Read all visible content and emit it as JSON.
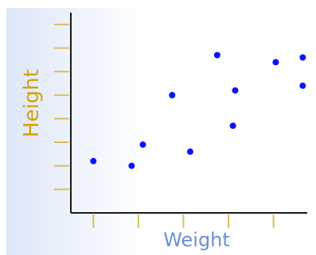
{
  "colors": {
    "background_start": "#dde7f8",
    "background_end": "#ffffff",
    "axis_line": "#1a1a1a",
    "tick": "#d8c060",
    "point": "#0a14ff",
    "ylabel_color": "#d4a20a",
    "xlabel_color": "#6b8fd6"
  },
  "chart_data": {
    "type": "scatter",
    "title": "",
    "xlabel": "Weight",
    "ylabel": "Height",
    "xlim": [
      0,
      10.5
    ],
    "ylim": [
      0,
      8.5
    ],
    "x_ticks": [
      1,
      2,
      3,
      4,
      5,
      6,
      7,
      8,
      9,
      10
    ],
    "y_ticks": [
      1,
      2,
      3,
      4,
      5,
      6,
      7,
      8
    ],
    "grid": false,
    "points": [
      {
        "x": 1.0,
        "y": 2.2
      },
      {
        "x": 2.7,
        "y": 2.0
      },
      {
        "x": 3.2,
        "y": 2.9
      },
      {
        "x": 4.5,
        "y": 5.0
      },
      {
        "x": 5.3,
        "y": 2.6
      },
      {
        "x": 6.5,
        "y": 6.7
      },
      {
        "x": 7.2,
        "y": 3.7
      },
      {
        "x": 7.3,
        "y": 5.2
      },
      {
        "x": 9.1,
        "y": 6.4
      },
      {
        "x": 10.3,
        "y": 6.6
      },
      {
        "x": 10.3,
        "y": 5.4
      }
    ]
  }
}
